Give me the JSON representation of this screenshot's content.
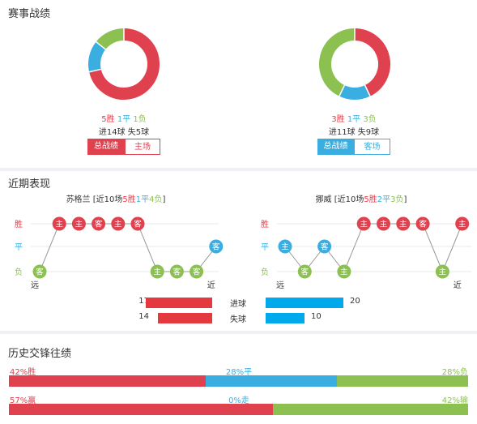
{
  "sections": {
    "record_title": "赛事战绩",
    "recent_title": "近期表现",
    "h2h_title": "历史交锋往绩"
  },
  "left_team": {
    "record": {
      "win": "5胜",
      "draw": "1平",
      "loss": "1负",
      "goals": "进14球 失5球"
    },
    "donut": [
      {
        "value": 5,
        "color": "#e0414f"
      },
      {
        "value": 1,
        "color": "#3aaee0"
      },
      {
        "value": 1,
        "color": "#8cc152"
      }
    ],
    "tabs": {
      "active": "总战绩",
      "other": "主场"
    },
    "recent": {
      "name": "苏格兰",
      "prefix": "[近10场",
      "wins": "5胜",
      "draws": "1平",
      "losses": "4负",
      "suffix": "]",
      "far": "远",
      "near": "近",
      "matches": [
        {
          "res": "L",
          "loc": "客"
        },
        {
          "res": "W",
          "loc": "主"
        },
        {
          "res": "W",
          "loc": "主"
        },
        {
          "res": "W",
          "loc": "客"
        },
        {
          "res": "W",
          "loc": "主"
        },
        {
          "res": "W",
          "loc": "客"
        },
        {
          "res": "L",
          "loc": "主"
        },
        {
          "res": "L",
          "loc": "客"
        },
        {
          "res": "L",
          "loc": "客"
        },
        {
          "res": "D",
          "loc": "客"
        }
      ],
      "goals_for": "17",
      "goals_against": "14",
      "goals_for_val": 17,
      "goals_against_val": 14
    }
  },
  "right_team": {
    "record": {
      "win": "3胜",
      "draw": "1平",
      "loss": "3负",
      "goals": "进11球 失9球"
    },
    "donut": [
      {
        "value": 3,
        "color": "#e0414f"
      },
      {
        "value": 1,
        "color": "#3aaee0"
      },
      {
        "value": 3,
        "color": "#8cc152"
      }
    ],
    "tabs": {
      "active": "总战绩",
      "other": "客场"
    },
    "recent": {
      "name": "挪威",
      "prefix": "[近10场",
      "wins": "5胜",
      "draws": "2平",
      "losses": "3负",
      "suffix": "]",
      "far": "远",
      "near": "近",
      "matches": [
        {
          "res": "D",
          "loc": "主"
        },
        {
          "res": "L",
          "loc": "客"
        },
        {
          "res": "D",
          "loc": "客"
        },
        {
          "res": "L",
          "loc": "主"
        },
        {
          "res": "W",
          "loc": "主"
        },
        {
          "res": "W",
          "loc": "主"
        },
        {
          "res": "W",
          "loc": "主"
        },
        {
          "res": "W",
          "loc": "客"
        },
        {
          "res": "L",
          "loc": "主"
        },
        {
          "res": "W",
          "loc": "主"
        }
      ],
      "goals_for": "20",
      "goals_against": "10",
      "goals_for_val": 20,
      "goals_against_val": 10
    }
  },
  "axis": {
    "win": "胜",
    "draw": "平",
    "loss": "负"
  },
  "goal_labels": {
    "for": "进球",
    "against": "失球"
  },
  "h2h": {
    "row1": {
      "left": "42%胜",
      "mid": "28%平",
      "right": "28%负",
      "left_val": 42,
      "mid_val": 28,
      "right_val": 28
    },
    "row2": {
      "left": "57%赢",
      "mid": "0%走",
      "right": "42%输",
      "left_val": 57,
      "mid_val": 0,
      "right_val": 42
    }
  },
  "colors": {
    "win": "#e0414f",
    "draw": "#3aaee0",
    "loss": "#8cc152",
    "bar_red": "#e3393f",
    "bar_blue": "#00a8ec"
  }
}
